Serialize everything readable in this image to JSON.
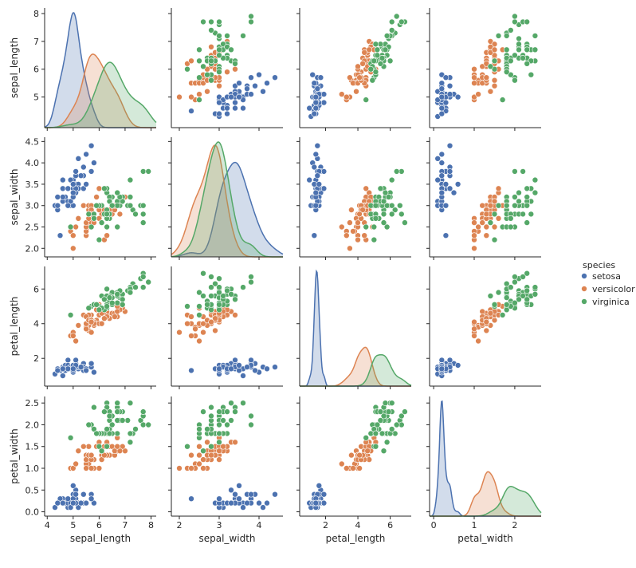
{
  "chart_data": {
    "type": "pairplot",
    "variables": [
      "sepal_length",
      "sepal_width",
      "petal_length",
      "petal_width"
    ],
    "axes": {
      "sepal_length": {
        "lim": [
          3.9,
          8.2
        ],
        "ticks": [
          4,
          5,
          6,
          7,
          8
        ],
        "row_ticks": [
          5,
          6,
          7,
          8
        ]
      },
      "sepal_width": {
        "lim": [
          1.8,
          4.6
        ],
        "ticks": [
          2,
          3,
          4,
          5
        ],
        "row_ticks": [
          "2.0",
          "2.5",
          "3.0",
          "3.5",
          "4.0",
          "4.5"
        ]
      },
      "petal_length": {
        "lim": [
          0.4,
          7.3
        ],
        "ticks": [
          2,
          4,
          6,
          8
        ],
        "row_ticks": [
          2,
          4,
          6
        ]
      },
      "petal_width": {
        "lim": [
          -0.1,
          2.65
        ],
        "ticks": [
          0,
          1,
          2,
          3
        ],
        "row_ticks": [
          "0.0",
          "0.5",
          "1.0",
          "1.5",
          "2.0",
          "2.5"
        ]
      }
    },
    "legend": {
      "title": "species",
      "placement": "right",
      "entries": [
        {
          "name": "setosa",
          "color": "#4c72b0"
        },
        {
          "name": "versicolor",
          "color": "#dd8452"
        },
        {
          "name": "virginica",
          "color": "#55a868"
        }
      ]
    },
    "data": {
      "setosa": [
        [
          5.1,
          3.5,
          1.4,
          0.2
        ],
        [
          4.9,
          3.0,
          1.4,
          0.2
        ],
        [
          4.7,
          3.2,
          1.3,
          0.2
        ],
        [
          4.6,
          3.1,
          1.5,
          0.2
        ],
        [
          5.0,
          3.6,
          1.4,
          0.2
        ],
        [
          5.4,
          3.9,
          1.7,
          0.4
        ],
        [
          4.6,
          3.4,
          1.4,
          0.3
        ],
        [
          5.0,
          3.4,
          1.5,
          0.2
        ],
        [
          4.4,
          2.9,
          1.4,
          0.2
        ],
        [
          4.9,
          3.1,
          1.5,
          0.1
        ],
        [
          5.4,
          3.7,
          1.5,
          0.2
        ],
        [
          4.8,
          3.4,
          1.6,
          0.2
        ],
        [
          4.8,
          3.0,
          1.4,
          0.1
        ],
        [
          4.3,
          3.0,
          1.1,
          0.1
        ],
        [
          5.8,
          4.0,
          1.2,
          0.2
        ],
        [
          5.7,
          4.4,
          1.5,
          0.4
        ],
        [
          5.4,
          3.9,
          1.3,
          0.4
        ],
        [
          5.1,
          3.5,
          1.4,
          0.3
        ],
        [
          5.7,
          3.8,
          1.7,
          0.3
        ],
        [
          5.1,
          3.8,
          1.5,
          0.3
        ],
        [
          5.4,
          3.4,
          1.7,
          0.2
        ],
        [
          5.1,
          3.7,
          1.5,
          0.4
        ],
        [
          4.6,
          3.6,
          1.0,
          0.2
        ],
        [
          5.1,
          3.3,
          1.7,
          0.5
        ],
        [
          4.8,
          3.4,
          1.9,
          0.2
        ],
        [
          5.0,
          3.0,
          1.6,
          0.2
        ],
        [
          5.0,
          3.4,
          1.6,
          0.4
        ],
        [
          5.2,
          3.5,
          1.5,
          0.2
        ],
        [
          5.2,
          3.4,
          1.4,
          0.2
        ],
        [
          4.7,
          3.2,
          1.6,
          0.2
        ],
        [
          4.8,
          3.1,
          1.6,
          0.2
        ],
        [
          5.4,
          3.4,
          1.5,
          0.4
        ],
        [
          5.2,
          4.1,
          1.5,
          0.1
        ],
        [
          5.5,
          4.2,
          1.4,
          0.2
        ],
        [
          4.9,
          3.1,
          1.5,
          0.2
        ],
        [
          5.0,
          3.2,
          1.2,
          0.2
        ],
        [
          5.5,
          3.5,
          1.3,
          0.2
        ],
        [
          4.9,
          3.6,
          1.4,
          0.1
        ],
        [
          4.4,
          3.0,
          1.3,
          0.2
        ],
        [
          5.1,
          3.4,
          1.5,
          0.2
        ],
        [
          5.0,
          3.5,
          1.3,
          0.3
        ],
        [
          4.5,
          2.3,
          1.3,
          0.3
        ],
        [
          4.4,
          3.2,
          1.3,
          0.2
        ],
        [
          5.0,
          3.5,
          1.6,
          0.6
        ],
        [
          5.1,
          3.8,
          1.9,
          0.4
        ],
        [
          4.8,
          3.0,
          1.4,
          0.3
        ],
        [
          5.1,
          3.8,
          1.6,
          0.2
        ],
        [
          4.6,
          3.2,
          1.4,
          0.2
        ],
        [
          5.3,
          3.7,
          1.5,
          0.2
        ],
        [
          5.0,
          3.3,
          1.4,
          0.2
        ]
      ],
      "versicolor": [
        [
          7.0,
          3.2,
          4.7,
          1.4
        ],
        [
          6.4,
          3.2,
          4.5,
          1.5
        ],
        [
          6.9,
          3.1,
          4.9,
          1.5
        ],
        [
          5.5,
          2.3,
          4.0,
          1.3
        ],
        [
          6.5,
          2.8,
          4.6,
          1.5
        ],
        [
          5.7,
          2.8,
          4.5,
          1.3
        ],
        [
          6.3,
          3.3,
          4.7,
          1.6
        ],
        [
          4.9,
          2.4,
          3.3,
          1.0
        ],
        [
          6.6,
          2.9,
          4.6,
          1.3
        ],
        [
          5.2,
          2.7,
          3.9,
          1.4
        ],
        [
          5.0,
          2.0,
          3.5,
          1.0
        ],
        [
          5.9,
          3.0,
          4.2,
          1.5
        ],
        [
          6.0,
          2.2,
          4.0,
          1.0
        ],
        [
          6.1,
          2.9,
          4.7,
          1.4
        ],
        [
          5.6,
          2.9,
          3.6,
          1.3
        ],
        [
          6.7,
          3.1,
          4.4,
          1.4
        ],
        [
          5.6,
          3.0,
          4.5,
          1.5
        ],
        [
          5.8,
          2.7,
          4.1,
          1.0
        ],
        [
          6.2,
          2.2,
          4.5,
          1.5
        ],
        [
          5.6,
          2.5,
          3.9,
          1.1
        ],
        [
          5.9,
          3.2,
          4.8,
          1.8
        ],
        [
          6.1,
          2.8,
          4.0,
          1.3
        ],
        [
          6.3,
          2.5,
          4.9,
          1.5
        ],
        [
          6.1,
          2.8,
          4.7,
          1.2
        ],
        [
          6.4,
          2.9,
          4.3,
          1.3
        ],
        [
          6.6,
          3.0,
          4.4,
          1.4
        ],
        [
          6.8,
          2.8,
          4.8,
          1.4
        ],
        [
          6.7,
          3.0,
          5.0,
          1.7
        ],
        [
          6.0,
          2.9,
          4.5,
          1.5
        ],
        [
          5.7,
          2.6,
          3.5,
          1.0
        ],
        [
          5.5,
          2.4,
          3.8,
          1.1
        ],
        [
          5.5,
          2.4,
          3.7,
          1.0
        ],
        [
          5.8,
          2.7,
          3.9,
          1.2
        ],
        [
          6.0,
          2.7,
          5.1,
          1.6
        ],
        [
          5.4,
          3.0,
          4.5,
          1.5
        ],
        [
          6.0,
          3.4,
          4.5,
          1.6
        ],
        [
          6.7,
          3.1,
          4.7,
          1.5
        ],
        [
          6.3,
          2.3,
          4.4,
          1.3
        ],
        [
          5.6,
          3.0,
          4.1,
          1.3
        ],
        [
          5.5,
          2.5,
          4.0,
          1.3
        ],
        [
          5.5,
          2.6,
          4.4,
          1.2
        ],
        [
          6.1,
          3.0,
          4.6,
          1.4
        ],
        [
          5.8,
          2.6,
          4.0,
          1.2
        ],
        [
          5.0,
          2.3,
          3.3,
          1.0
        ],
        [
          5.6,
          2.7,
          4.2,
          1.3
        ],
        [
          5.7,
          3.0,
          4.2,
          1.2
        ],
        [
          5.7,
          2.9,
          4.2,
          1.3
        ],
        [
          6.2,
          2.9,
          4.3,
          1.3
        ],
        [
          5.1,
          2.5,
          3.0,
          1.1
        ],
        [
          5.7,
          2.8,
          4.1,
          1.3
        ]
      ],
      "virginica": [
        [
          6.3,
          3.3,
          6.0,
          2.5
        ],
        [
          5.8,
          2.7,
          5.1,
          1.9
        ],
        [
          7.1,
          3.0,
          5.9,
          2.1
        ],
        [
          6.3,
          2.9,
          5.6,
          1.8
        ],
        [
          6.5,
          3.0,
          5.8,
          2.2
        ],
        [
          7.6,
          3.0,
          6.6,
          2.1
        ],
        [
          4.9,
          2.5,
          4.5,
          1.7
        ],
        [
          7.3,
          2.9,
          6.3,
          1.8
        ],
        [
          6.7,
          2.5,
          5.8,
          1.8
        ],
        [
          7.2,
          3.6,
          6.1,
          2.5
        ],
        [
          6.5,
          3.2,
          5.1,
          2.0
        ],
        [
          6.4,
          2.7,
          5.3,
          1.9
        ],
        [
          6.8,
          3.0,
          5.5,
          2.1
        ],
        [
          5.7,
          2.5,
          5.0,
          2.0
        ],
        [
          5.8,
          2.8,
          5.1,
          2.4
        ],
        [
          6.4,
          3.2,
          5.3,
          2.3
        ],
        [
          6.5,
          3.0,
          5.5,
          1.8
        ],
        [
          7.7,
          3.8,
          6.7,
          2.2
        ],
        [
          7.7,
          2.6,
          6.9,
          2.3
        ],
        [
          6.0,
          2.2,
          5.0,
          1.5
        ],
        [
          6.9,
          3.2,
          5.7,
          2.3
        ],
        [
          5.6,
          2.8,
          4.9,
          2.0
        ],
        [
          7.7,
          2.8,
          6.7,
          2.0
        ],
        [
          6.3,
          2.7,
          4.9,
          1.8
        ],
        [
          6.7,
          3.3,
          5.7,
          2.1
        ],
        [
          7.2,
          3.2,
          6.0,
          1.8
        ],
        [
          6.2,
          2.8,
          4.8,
          1.8
        ],
        [
          6.1,
          3.0,
          4.9,
          1.8
        ],
        [
          6.4,
          2.8,
          5.6,
          2.1
        ],
        [
          7.2,
          3.0,
          5.8,
          1.6
        ],
        [
          7.4,
          2.8,
          6.1,
          1.9
        ],
        [
          7.9,
          3.8,
          6.4,
          2.0
        ],
        [
          6.4,
          2.8,
          5.6,
          2.2
        ],
        [
          6.3,
          2.8,
          5.1,
          1.5
        ],
        [
          6.1,
          2.6,
          5.6,
          1.4
        ],
        [
          7.7,
          3.0,
          6.1,
          2.3
        ],
        [
          6.3,
          3.4,
          5.6,
          2.4
        ],
        [
          6.4,
          3.1,
          5.5,
          1.8
        ],
        [
          6.0,
          3.0,
          4.8,
          1.8
        ],
        [
          6.9,
          3.1,
          5.4,
          2.1
        ],
        [
          6.7,
          3.1,
          5.6,
          2.4
        ],
        [
          6.9,
          3.1,
          5.1,
          2.3
        ],
        [
          5.8,
          2.7,
          5.1,
          1.9
        ],
        [
          6.8,
          3.2,
          5.9,
          2.3
        ],
        [
          6.7,
          3.3,
          5.7,
          2.5
        ],
        [
          6.7,
          3.0,
          5.2,
          2.3
        ],
        [
          6.3,
          2.5,
          5.0,
          1.9
        ],
        [
          6.5,
          3.0,
          5.2,
          2.0
        ],
        [
          6.2,
          3.4,
          5.4,
          2.3
        ],
        [
          5.9,
          3.0,
          5.1,
          1.8
        ]
      ]
    }
  }
}
